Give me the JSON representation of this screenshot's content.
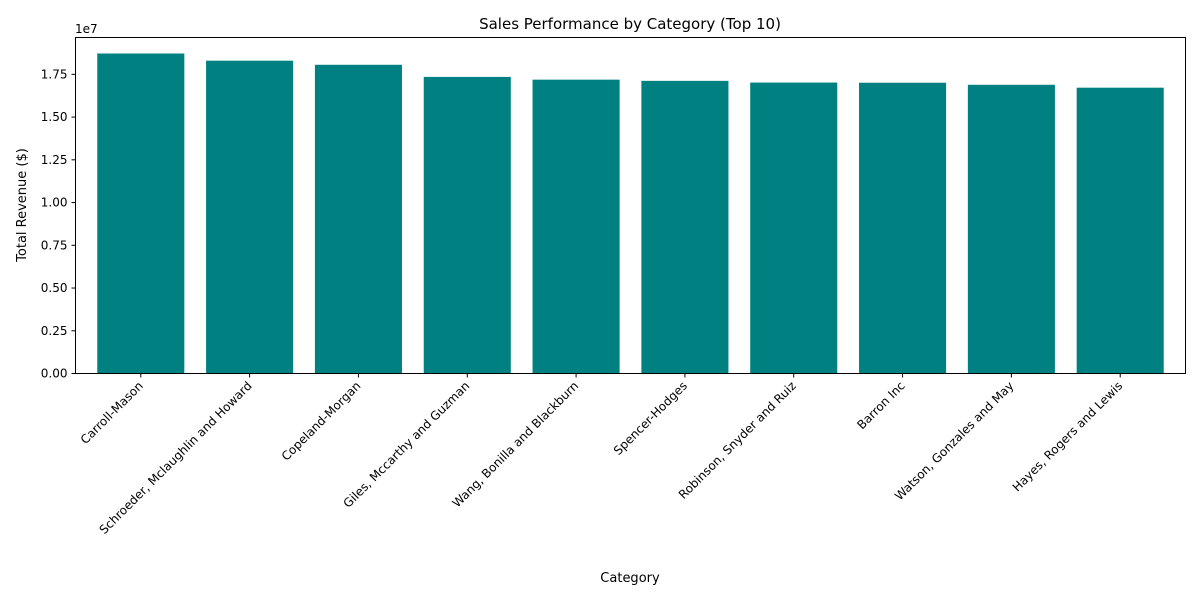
{
  "chart_data": {
    "type": "bar",
    "title": "Sales Performance by Category (Top 10)",
    "xlabel": "Category",
    "ylabel": "Total Revenue ($)",
    "y_offset_label": "1e7",
    "categories": [
      "Carroll-Mason",
      "Schroeder, Mclaughlin and Howard",
      "Copeland-Morgan",
      "Giles, Mccarthy and Guzman",
      "Wang, Bonilla and Blackburn",
      "Spencer-Hodges",
      "Robinson, Snyder and Ruiz",
      "Barron Inc",
      "Watson, Gonzales and May",
      "Hayes, Rogers and Lewis"
    ],
    "values": [
      18720000,
      18300000,
      18060000,
      17350000,
      17190000,
      17120000,
      17020000,
      17010000,
      16890000,
      16720000
    ],
    "y_ticks": [
      0,
      2500000,
      5000000,
      7500000,
      10000000,
      12500000,
      15000000,
      17500000
    ],
    "y_tick_labels": [
      "0.00",
      "0.25",
      "0.50",
      "0.75",
      "1.00",
      "1.25",
      "1.50",
      "1.75"
    ],
    "ylim": [
      0,
      19656000
    ],
    "bar_color": "#008080",
    "grid": false,
    "legend": "none"
  }
}
